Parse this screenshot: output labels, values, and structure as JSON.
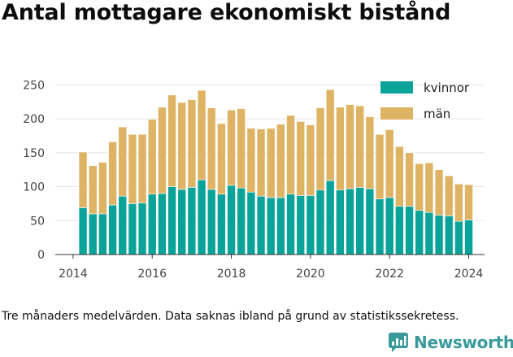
{
  "title": "Antal mottagare ekonomiskt bistånd",
  "footnote": "Tre månaders medelvärden. Data saknas ibland på grund av statistikssekretess.",
  "brand": {
    "name": "Newsworthy",
    "logo_icon": "newsworthy-logo-icon"
  },
  "colors": {
    "kvinnor": "#0aa39a",
    "man": "#deb364",
    "grid": "#e6e6e6",
    "text": "#444444"
  },
  "chart_data": {
    "type": "bar",
    "stacked": true,
    "x_unit": "year (quarterly observations)",
    "x": [
      2014.25,
      2014.5,
      2014.75,
      2015.0,
      2015.25,
      2015.5,
      2015.75,
      2016.0,
      2016.25,
      2016.5,
      2016.75,
      2017.0,
      2017.25,
      2017.5,
      2017.75,
      2018.0,
      2018.25,
      2018.5,
      2018.75,
      2019.0,
      2019.25,
      2019.5,
      2019.75,
      2020.0,
      2020.25,
      2020.5,
      2020.75,
      2021.0,
      2021.25,
      2021.5,
      2021.75,
      2022.0,
      2022.25,
      2022.5,
      2022.75,
      2023.0,
      2023.25,
      2023.5,
      2023.75,
      2024.0
    ],
    "series": [
      {
        "name": "kvinnor",
        "values": [
          69,
          60,
          60,
          73,
          86,
          75,
          76,
          89,
          90,
          100,
          96,
          99,
          110,
          96,
          89,
          102,
          98,
          92,
          86,
          84,
          84,
          89,
          87,
          87,
          95,
          109,
          95,
          97,
          99,
          97,
          82,
          84,
          71,
          71,
          65,
          62,
          58,
          57,
          49,
          51
        ]
      },
      {
        "name": "män",
        "values": [
          82,
          71,
          76,
          93,
          102,
          102,
          101,
          110,
          127,
          135,
          128,
          129,
          132,
          120,
          104,
          111,
          117,
          94,
          99,
          102,
          108,
          116,
          109,
          104,
          121,
          134,
          122,
          124,
          120,
          106,
          95,
          100,
          88,
          79,
          69,
          73,
          67,
          59,
          55,
          52
        ]
      }
    ],
    "xticks": [
      "2014",
      "2016",
      "2018",
      "2020",
      "2022",
      "2024"
    ],
    "xtick_values": [
      2014,
      2016,
      2018,
      2020,
      2022,
      2024
    ],
    "yticks": [
      "0",
      "50",
      "100",
      "150",
      "200",
      "250"
    ],
    "ytick_values": [
      0,
      50,
      100,
      150,
      200,
      250
    ],
    "xlim": [
      2013.55,
      2024.4
    ],
    "ylim": [
      0,
      260
    ],
    "grid": true,
    "legend_position": "top-right"
  }
}
